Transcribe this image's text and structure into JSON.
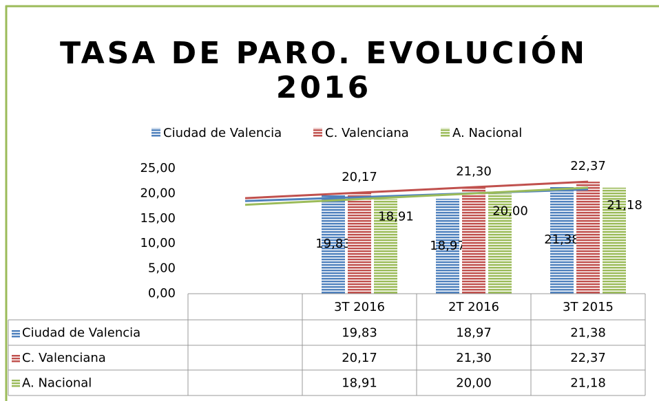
{
  "chart_data": {
    "type": "bar",
    "title": "TASA DE PARO. EVOLUCIÓN 2016",
    "categories": [
      null,
      "3T 2016",
      "2T 2016",
      "3T 2015"
    ],
    "series": [
      {
        "name": "Ciudad de Valencia",
        "color": "#4f81bd",
        "values": [
          null,
          19.83,
          18.97,
          21.38
        ],
        "value_labels": [
          null,
          "19,83",
          "18,97",
          "21,38"
        ]
      },
      {
        "name": "C. Valenciana",
        "color": "#c0504d",
        "values": [
          null,
          20.17,
          21.3,
          22.37
        ],
        "value_labels": [
          null,
          "20,17",
          "21,30",
          "22,37"
        ]
      },
      {
        "name": "A. Nacional",
        "color": "#9bbb59",
        "values": [
          null,
          18.91,
          20.0,
          21.18
        ],
        "value_labels": [
          null,
          "18,91",
          "20,00",
          "21,18"
        ]
      }
    ],
    "ylim": [
      0,
      25
    ],
    "yticks": [
      {
        "value": 0,
        "label": "0,00"
      },
      {
        "value": 5,
        "label": "5,00"
      },
      {
        "value": 10,
        "label": "10,00"
      },
      {
        "value": 15,
        "label": "15,00"
      },
      {
        "value": 20,
        "label": "20,00"
      },
      {
        "value": 25,
        "label": "25,00"
      }
    ],
    "grid": false,
    "trendlines": true,
    "legend": "top",
    "data_table": true
  }
}
